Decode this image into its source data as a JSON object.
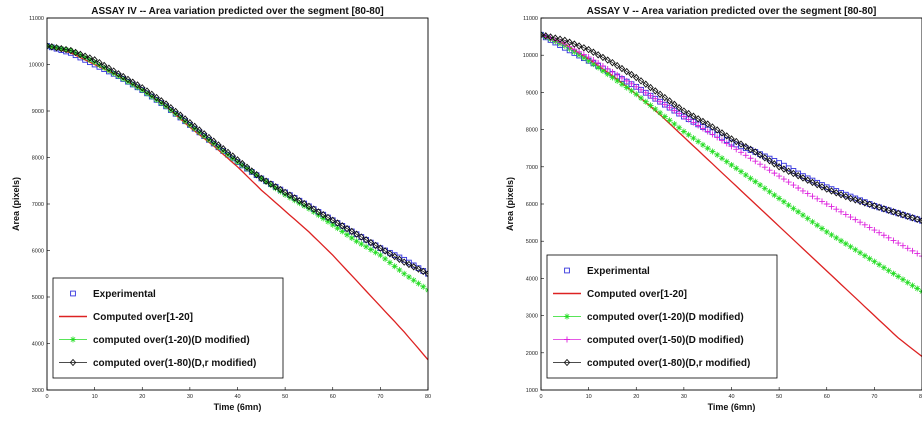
{
  "chart_data": [
    {
      "type": "line",
      "title": "ASSAY IV -- Area variation predicted over the segment [80-80]",
      "xlabel": "Time (6mn)",
      "ylabel": "Area (pixels)",
      "xlim": [
        0,
        80
      ],
      "ylim": [
        3000,
        11000
      ],
      "xticks": [
        0,
        10,
        20,
        30,
        40,
        50,
        60,
        70,
        80
      ],
      "yticks": [
        3000,
        4000,
        5000,
        6000,
        7000,
        8000,
        9000,
        10000,
        11000
      ],
      "legend_position": "bottom-left",
      "series": [
        {
          "name": "Experimental",
          "color": "#3333dd",
          "marker": "square",
          "style": "marker",
          "x": [
            0,
            5,
            10,
            15,
            20,
            25,
            30,
            35,
            40,
            45,
            50,
            55,
            60,
            65,
            70,
            75,
            80
          ],
          "y": [
            10400,
            10250,
            10000,
            9750,
            9450,
            9100,
            8700,
            8300,
            7900,
            7550,
            7250,
            6950,
            6650,
            6350,
            6050,
            5800,
            5500
          ]
        },
        {
          "name": "Computed over[1-20]",
          "color": "#dd2222",
          "marker": "none",
          "style": "line",
          "x": [
            0,
            5,
            10,
            15,
            20,
            25,
            30,
            35,
            40,
            45,
            50,
            55,
            60,
            65,
            70,
            75,
            80
          ],
          "y": [
            10400,
            10250,
            10000,
            9750,
            9450,
            9100,
            8650,
            8250,
            7800,
            7300,
            6850,
            6400,
            5900,
            5350,
            4800,
            4250,
            3650
          ]
        },
        {
          "name": "computed over(1-20)(D modified)",
          "color": "#22dd22",
          "marker": "star",
          "style": "marker",
          "x": [
            0,
            5,
            10,
            15,
            20,
            25,
            30,
            35,
            40,
            45,
            50,
            55,
            60,
            65,
            70,
            75,
            80
          ],
          "y": [
            10400,
            10300,
            10050,
            9750,
            9450,
            9100,
            8700,
            8300,
            7900,
            7550,
            7200,
            6900,
            6550,
            6200,
            5900,
            5500,
            5150
          ]
        },
        {
          "name": "computed over(1-80)(D,r modified)",
          "color": "#111111",
          "marker": "diamond",
          "style": "line-marker",
          "x": [
            0,
            5,
            10,
            15,
            20,
            25,
            30,
            35,
            40,
            45,
            50,
            55,
            60,
            65,
            70,
            75,
            80
          ],
          "y": [
            10400,
            10300,
            10100,
            9800,
            9500,
            9150,
            8750,
            8350,
            7950,
            7550,
            7250,
            6950,
            6650,
            6350,
            6050,
            5750,
            5500
          ]
        }
      ]
    },
    {
      "type": "line",
      "title": "ASSAY V -- Area variation predicted over the segment [80-80]",
      "xlabel": "Time (6mn)",
      "ylabel": "Area (pixels)",
      "xlim": [
        0,
        80
      ],
      "ylim": [
        1000,
        11000
      ],
      "xticks": [
        0,
        10,
        20,
        30,
        40,
        50,
        60,
        70,
        80
      ],
      "yticks": [
        1000,
        2000,
        3000,
        4000,
        5000,
        6000,
        7000,
        8000,
        9000,
        10000,
        11000
      ],
      "legend_position": "bottom-left",
      "series": [
        {
          "name": "Experimental",
          "color": "#3333dd",
          "marker": "square",
          "style": "marker",
          "x": [
            0,
            5,
            10,
            15,
            20,
            25,
            30,
            35,
            40,
            45,
            50,
            55,
            60,
            65,
            70,
            75,
            80
          ],
          "y": [
            10550,
            10200,
            9850,
            9500,
            9150,
            8750,
            8350,
            8000,
            7650,
            7400,
            7100,
            6750,
            6450,
            6200,
            5950,
            5750,
            5550
          ]
        },
        {
          "name": "Computed over[1-20]",
          "color": "#dd2222",
          "marker": "none",
          "style": "line",
          "x": [
            0,
            5,
            10,
            15,
            20,
            25,
            30,
            35,
            40,
            45,
            50,
            55,
            60,
            65,
            70,
            75,
            80
          ],
          "y": [
            10550,
            10300,
            9900,
            9450,
            8950,
            8400,
            7800,
            7200,
            6600,
            6000,
            5400,
            4800,
            4200,
            3600,
            3000,
            2400,
            1900
          ]
        },
        {
          "name": "computed over(1-20)(D modified)",
          "color": "#22dd22",
          "marker": "star",
          "style": "marker",
          "x": [
            0,
            5,
            10,
            15,
            20,
            25,
            30,
            35,
            40,
            45,
            50,
            55,
            60,
            65,
            70,
            75,
            80
          ],
          "y": [
            10550,
            10250,
            9850,
            9400,
            8950,
            8450,
            7950,
            7500,
            7050,
            6600,
            6150,
            5700,
            5250,
            4850,
            4450,
            4050,
            3650
          ]
        },
        {
          "name": "computed over(1-50)(D modified)",
          "color": "#dd22dd",
          "marker": "plus",
          "style": "marker",
          "x": [
            0,
            5,
            10,
            15,
            20,
            25,
            30,
            35,
            40,
            45,
            50,
            55,
            60,
            65,
            70,
            75,
            80
          ],
          "y": [
            10550,
            10300,
            9950,
            9550,
            9150,
            8750,
            8350,
            7950,
            7550,
            7150,
            6750,
            6350,
            6000,
            5650,
            5300,
            4950,
            4600
          ]
        },
        {
          "name": "computed over(1-80)(D,r modified)",
          "color": "#111111",
          "marker": "diamond",
          "style": "line-marker",
          "x": [
            0,
            5,
            10,
            15,
            20,
            25,
            30,
            35,
            40,
            45,
            50,
            55,
            60,
            65,
            70,
            75,
            80
          ],
          "y": [
            10550,
            10400,
            10150,
            9800,
            9400,
            8950,
            8500,
            8150,
            7750,
            7400,
            7000,
            6700,
            6400,
            6150,
            5950,
            5750,
            5550
          ]
        }
      ]
    }
  ]
}
